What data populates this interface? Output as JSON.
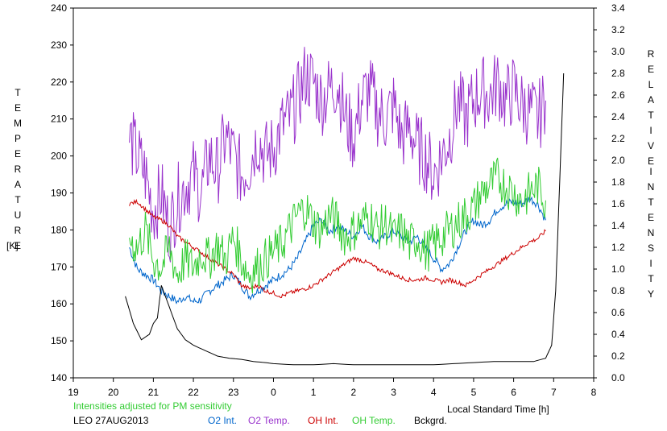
{
  "chart_data": {
    "type": "line",
    "left_axis": {
      "label_letters": "TEMPERATURE",
      "unit": "[K]",
      "ylim": [
        140,
        240
      ],
      "ticks": [
        "140",
        "150",
        "160",
        "170",
        "180",
        "190",
        "200",
        "210",
        "220",
        "230",
        "240"
      ]
    },
    "right_axis": {
      "label_letters_1": "RELATIVE",
      "label_letters_2": "INTENSITY",
      "ylim": [
        0.0,
        3.4
      ],
      "ticks": [
        "0.0",
        "0.2",
        "0.4",
        "0.6",
        "0.8",
        "1.0",
        "1.2",
        "1.4",
        "1.6",
        "1.8",
        "2.0",
        "2.2",
        "2.4",
        "2.6",
        "2.8",
        "3.0",
        "3.2",
        "3.4"
      ]
    },
    "x_axis": {
      "label": "Local Standard Time [h]",
      "xlim": [
        19,
        32
      ],
      "ticks": [
        "19",
        "20",
        "21",
        "22",
        "23",
        "0",
        "1",
        "2",
        "3",
        "4",
        "5",
        "6",
        "7",
        "8"
      ]
    },
    "note": "Intensities adjusted for PM sensitivity",
    "station": "LEO 27AUG2013",
    "series": [
      {
        "name": "O2 Int.",
        "color": "#0066cc",
        "axis": "right",
        "x": [
          20.4,
          20.6,
          20.8,
          21.0,
          21.2,
          21.4,
          21.6,
          21.8,
          22.0,
          22.2,
          22.4,
          22.6,
          22.8,
          23.0,
          23.2,
          23.4,
          23.6,
          23.8,
          24.0,
          24.2,
          24.4,
          24.6,
          24.8,
          25.0,
          25.2,
          25.4,
          25.6,
          25.8,
          26.0,
          26.2,
          26.4,
          26.6,
          26.8,
          27.0,
          27.2,
          27.4,
          27.6,
          27.8,
          28.0,
          28.2,
          28.4,
          28.6,
          28.8,
          29.0,
          29.2,
          29.4,
          29.6,
          29.8,
          30.0,
          30.2,
          30.4,
          30.6,
          30.8
        ],
        "y": [
          1.2,
          1.0,
          0.95,
          0.9,
          0.8,
          0.75,
          0.7,
          0.75,
          0.7,
          0.72,
          0.8,
          0.85,
          0.9,
          0.95,
          0.85,
          0.75,
          0.8,
          0.85,
          0.9,
          0.95,
          1.0,
          1.1,
          1.25,
          1.4,
          1.45,
          1.35,
          1.4,
          1.35,
          1.3,
          1.4,
          1.3,
          1.25,
          1.3,
          1.35,
          1.3,
          1.25,
          1.3,
          1.2,
          1.1,
          1.0,
          1.05,
          1.2,
          1.35,
          1.45,
          1.4,
          1.45,
          1.55,
          1.6,
          1.62,
          1.6,
          1.65,
          1.6,
          1.45
        ]
      },
      {
        "name": "O2 Temp.",
        "color": "#9933cc",
        "axis": "left",
        "x": [
          20.4,
          20.6,
          20.8,
          21.0,
          21.2,
          21.4,
          21.6,
          21.8,
          22.0,
          22.2,
          22.4,
          22.6,
          22.8,
          23.0,
          23.2,
          23.4,
          23.6,
          23.8,
          24.0,
          24.2,
          24.4,
          24.6,
          24.8,
          25.0,
          25.2,
          25.4,
          25.6,
          25.8,
          26.0,
          26.2,
          26.4,
          26.6,
          26.8,
          27.0,
          27.2,
          27.4,
          27.6,
          27.8,
          28.0,
          28.2,
          28.4,
          28.6,
          28.8,
          29.0,
          29.2,
          29.4,
          29.6,
          29.8,
          30.0,
          30.2,
          30.4,
          30.6,
          30.8
        ],
        "y": [
          205,
          200,
          195,
          185,
          190,
          180,
          188,
          192,
          195,
          190,
          200,
          196,
          205,
          200,
          195,
          198,
          205,
          200,
          202,
          208,
          210,
          215,
          222,
          220,
          215,
          218,
          220,
          210,
          205,
          215,
          218,
          212,
          210,
          214,
          205,
          208,
          202,
          200,
          195,
          200,
          205,
          215,
          210,
          215,
          218,
          216,
          220,
          215,
          218,
          214,
          212,
          210,
          215
        ]
      },
      {
        "name": "OH Int.",
        "color": "#cc0000",
        "axis": "right",
        "x": [
          20.4,
          20.6,
          20.8,
          21.0,
          21.2,
          21.4,
          21.6,
          21.8,
          22.0,
          22.2,
          22.4,
          22.6,
          22.8,
          23.0,
          23.2,
          23.4,
          23.6,
          23.8,
          24.0,
          24.2,
          24.4,
          24.6,
          24.8,
          25.0,
          25.2,
          25.4,
          25.6,
          25.8,
          26.0,
          26.2,
          26.4,
          26.6,
          26.8,
          27.0,
          27.2,
          27.4,
          27.6,
          27.8,
          28.0,
          28.2,
          28.4,
          28.6,
          28.8,
          29.0,
          29.2,
          29.4,
          29.6,
          29.8,
          30.0,
          30.2,
          30.4,
          30.6,
          30.8
        ],
        "y": [
          1.6,
          1.62,
          1.55,
          1.48,
          1.45,
          1.4,
          1.3,
          1.25,
          1.2,
          1.15,
          1.1,
          1.05,
          1.0,
          0.95,
          0.85,
          0.82,
          0.85,
          0.8,
          0.78,
          0.75,
          0.78,
          0.8,
          0.82,
          0.85,
          0.9,
          0.95,
          1.0,
          1.05,
          1.1,
          1.08,
          1.05,
          1.0,
          0.98,
          0.95,
          0.92,
          0.9,
          0.9,
          0.92,
          0.9,
          0.88,
          0.9,
          0.88,
          0.85,
          0.9,
          0.95,
          1.0,
          1.05,
          1.1,
          1.15,
          1.2,
          1.25,
          1.28,
          1.35
        ]
      },
      {
        "name": "OH Temp.",
        "color": "#33cc33",
        "axis": "left",
        "x": [
          20.4,
          20.6,
          20.8,
          21.0,
          21.2,
          21.4,
          21.6,
          21.8,
          22.0,
          22.2,
          22.4,
          22.6,
          22.8,
          23.0,
          23.2,
          23.4,
          23.6,
          23.8,
          24.0,
          24.2,
          24.4,
          24.6,
          24.8,
          25.0,
          25.2,
          25.4,
          25.6,
          25.8,
          26.0,
          26.2,
          26.4,
          26.6,
          26.8,
          27.0,
          27.2,
          27.4,
          27.6,
          27.8,
          28.0,
          28.2,
          28.4,
          28.6,
          28.8,
          29.0,
          29.2,
          29.4,
          29.6,
          29.8,
          30.0,
          30.2,
          30.4,
          30.6,
          30.8
        ],
        "y": [
          178,
          175,
          180,
          172,
          170,
          175,
          168,
          172,
          170,
          174,
          172,
          176,
          172,
          178,
          172,
          168,
          170,
          172,
          174,
          176,
          180,
          184,
          186,
          182,
          180,
          184,
          182,
          178,
          180,
          182,
          184,
          180,
          182,
          178,
          180,
          176,
          178,
          174,
          176,
          178,
          180,
          182,
          184,
          186,
          190,
          192,
          194,
          192,
          190,
          188,
          190,
          192,
          188
        ]
      },
      {
        "name": "Bckgrd.",
        "color": "#000000",
        "axis": "right",
        "x": [
          20.3,
          20.5,
          20.7,
          20.9,
          21.0,
          21.1,
          21.2,
          21.4,
          21.6,
          21.8,
          22.0,
          22.3,
          22.6,
          22.9,
          23.2,
          23.5,
          23.8,
          24.0,
          24.5,
          25.0,
          25.5,
          26.0,
          26.5,
          27.0,
          27.5,
          28.0,
          28.5,
          29.0,
          29.5,
          30.0,
          30.5,
          30.8,
          30.95,
          31.05,
          31.15,
          31.25
        ],
        "y": [
          0.75,
          0.5,
          0.35,
          0.4,
          0.5,
          0.55,
          0.85,
          0.65,
          0.45,
          0.35,
          0.3,
          0.25,
          0.2,
          0.18,
          0.17,
          0.15,
          0.14,
          0.13,
          0.12,
          0.12,
          0.13,
          0.12,
          0.12,
          0.12,
          0.12,
          0.12,
          0.13,
          0.14,
          0.15,
          0.15,
          0.15,
          0.18,
          0.3,
          0.8,
          1.8,
          2.8
        ]
      }
    ]
  }
}
